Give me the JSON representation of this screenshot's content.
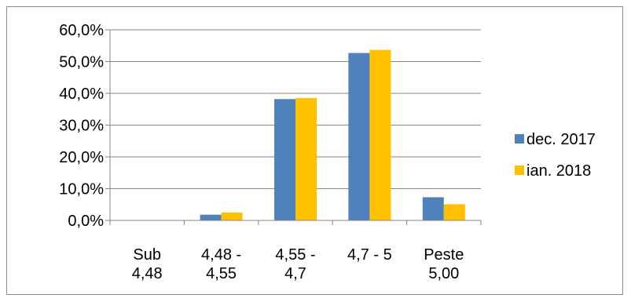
{
  "chart_data": {
    "type": "bar",
    "categories": [
      [
        "Sub",
        "4,48"
      ],
      [
        "4,48 -",
        "4,55"
      ],
      [
        "4,55 -",
        "4,7"
      ],
      [
        "4,7 - 5"
      ],
      [
        "Peste",
        "5,00"
      ]
    ],
    "series": [
      {
        "name": "dec. 2017",
        "values": [
          0.0,
          1.8,
          38.2,
          52.7,
          7.3
        ],
        "color": "#4f81bd"
      },
      {
        "name": "ian. 2018",
        "values": [
          0.0,
          2.5,
          38.5,
          53.7,
          5.1
        ],
        "color": "#ffc000"
      }
    ],
    "yticks": [
      "0,0%",
      "10,0%",
      "20,0%",
      "30,0%",
      "40,0%",
      "50,0%",
      "60,0%"
    ],
    "ylim": [
      0,
      60
    ],
    "grid": true,
    "legend_position": "right"
  }
}
